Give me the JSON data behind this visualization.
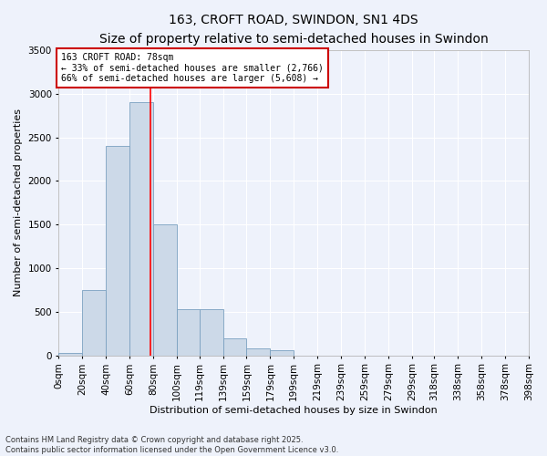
{
  "title": "163, CROFT ROAD, SWINDON, SN1 4DS",
  "subtitle": "Size of property relative to semi-detached houses in Swindon",
  "xlabel": "Distribution of semi-detached houses by size in Swindon",
  "ylabel": "Number of semi-detached properties",
  "bar_color": "#ccd9e8",
  "bar_edge_color": "#7aa0c0",
  "background_color": "#eef2fb",
  "grid_color": "#ffffff",
  "property_line_x": 78,
  "annotation_title": "163 CROFT ROAD: 78sqm",
  "annotation_line1": "← 33% of semi-detached houses are smaller (2,766)",
  "annotation_line2": "66% of semi-detached houses are larger (5,608) →",
  "bin_edges": [
    0,
    20,
    40,
    60,
    80,
    100,
    119,
    139,
    159,
    179,
    199,
    219,
    239,
    259,
    279,
    299,
    318,
    338,
    358,
    378,
    398
  ],
  "bin_labels": [
    "0sqm",
    "20sqm",
    "40sqm",
    "60sqm",
    "80sqm",
    "100sqm",
    "119sqm",
    "139sqm",
    "159sqm",
    "179sqm",
    "199sqm",
    "219sqm",
    "239sqm",
    "259sqm",
    "279sqm",
    "299sqm",
    "318sqm",
    "338sqm",
    "358sqm",
    "378sqm",
    "398sqm"
  ],
  "counts": [
    30,
    750,
    2400,
    2900,
    1500,
    530,
    530,
    200,
    80,
    60,
    0,
    0,
    0,
    0,
    0,
    0,
    0,
    0,
    0,
    0
  ],
  "ylim": [
    0,
    3500
  ],
  "yticks": [
    0,
    500,
    1000,
    1500,
    2000,
    2500,
    3000,
    3500
  ],
  "footnote": "Contains HM Land Registry data © Crown copyright and database right 2025.\nContains public sector information licensed under the Open Government Licence v3.0.",
  "annotation_box_color": "#ffffff",
  "annotation_box_edge_color": "#cc0000",
  "title_fontsize": 10,
  "subtitle_fontsize": 9,
  "axis_label_fontsize": 8,
  "tick_fontsize": 7.5,
  "annotation_fontsize": 7,
  "footnote_fontsize": 6
}
